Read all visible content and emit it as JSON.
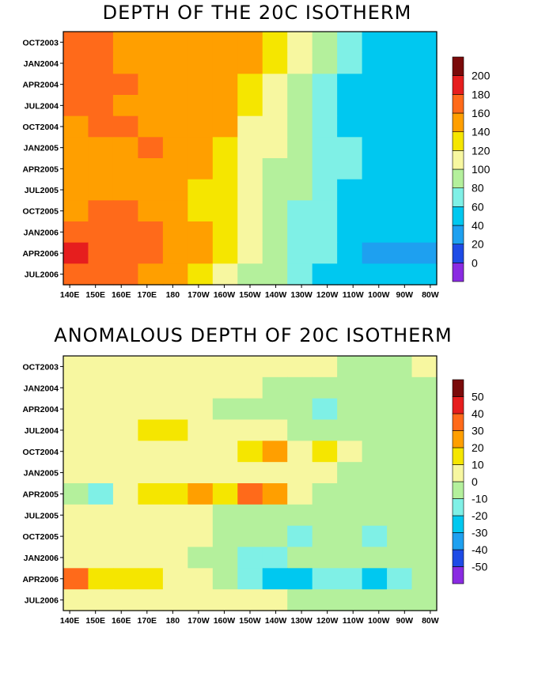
{
  "chart_data": [
    {
      "type": "heatmap",
      "title": "DEPTH OF THE 20C ISOTHERM",
      "x_tick_labels": [
        "140E",
        "150E",
        "160E",
        "170E",
        "180",
        "170W",
        "160W",
        "150W",
        "140W",
        "130W",
        "120W",
        "110W",
        "100W",
        "90W",
        "80W"
      ],
      "y_tick_labels": [
        "OCT2003",
        "JAN2004",
        "APR2004",
        "JUL2004",
        "OCT2004",
        "JAN2005",
        "APR2005",
        "JUL2005",
        "OCT2005",
        "JAN2006",
        "APR2006",
        "JUL2006"
      ],
      "colorbar": {
        "levels": [
          0,
          20,
          40,
          60,
          80,
          100,
          120,
          140,
          160,
          180,
          200
        ],
        "colors": [
          "#8a2be2",
          "#1e4be6",
          "#1ea0f0",
          "#00c8f0",
          "#7ff0e6",
          "#b4f09c",
          "#f7f7a0",
          "#f5e600",
          "#ff9f00",
          "#ff6a1a",
          "#e61e1e",
          "#7a0a0a"
        ]
      },
      "values": [
        [
          160,
          160,
          150,
          150,
          150,
          150,
          150,
          140,
          120,
          100,
          80,
          60,
          40,
          40,
          50
        ],
        [
          165,
          160,
          150,
          150,
          150,
          150,
          150,
          140,
          120,
          100,
          80,
          60,
          40,
          40,
          50
        ],
        [
          170,
          165,
          160,
          150,
          150,
          150,
          140,
          130,
          115,
          95,
          75,
          55,
          40,
          40,
          50
        ],
        [
          170,
          160,
          150,
          150,
          150,
          150,
          140,
          120,
          110,
          90,
          70,
          55,
          45,
          40,
          40
        ],
        [
          155,
          160,
          165,
          150,
          150,
          150,
          140,
          115,
          105,
          85,
          70,
          55,
          50,
          45,
          45
        ],
        [
          150,
          155,
          155,
          160,
          150,
          140,
          130,
          115,
          100,
          85,
          70,
          60,
          55,
          50,
          45
        ],
        [
          150,
          150,
          150,
          150,
          150,
          140,
          125,
          110,
          95,
          80,
          70,
          60,
          55,
          50,
          40
        ],
        [
          150,
          150,
          150,
          150,
          140,
          130,
          120,
          105,
          95,
          80,
          65,
          55,
          50,
          45,
          40
        ],
        [
          155,
          160,
          160,
          150,
          150,
          130,
          120,
          100,
          85,
          75,
          65,
          55,
          45,
          40,
          40
        ],
        [
          165,
          170,
          165,
          160,
          150,
          140,
          125,
          110,
          90,
          75,
          65,
          50,
          40,
          40,
          40
        ],
        [
          185,
          170,
          165,
          165,
          150,
          140,
          125,
          105,
          85,
          70,
          60,
          45,
          35,
          35,
          35
        ],
        [
          170,
          165,
          160,
          150,
          140,
          130,
          115,
          95,
          80,
          65,
          55,
          45,
          40,
          40,
          40
        ]
      ]
    },
    {
      "type": "heatmap",
      "title": "ANOMALOUS DEPTH OF 20C ISOTHERM",
      "x_tick_labels": [
        "140E",
        "150E",
        "160E",
        "170E",
        "180",
        "170W",
        "160W",
        "150W",
        "140W",
        "130W",
        "120W",
        "110W",
        "100W",
        "90W",
        "80W"
      ],
      "y_tick_labels": [
        "OCT2003",
        "JAN2004",
        "APR2004",
        "JUL2004",
        "OCT2004",
        "JAN2005",
        "APR2005",
        "JUL2005",
        "OCT2005",
        "JAN2006",
        "APR2006",
        "JUL2006"
      ],
      "colorbar": {
        "levels": [
          -50,
          -40,
          -30,
          -20,
          -10,
          0,
          10,
          20,
          30,
          40,
          50
        ],
        "colors": [
          "#8a2be2",
          "#1e4be6",
          "#1ea0f0",
          "#00c8f0",
          "#7ff0e6",
          "#b4f09c",
          "#f7f7a0",
          "#f5e600",
          "#ff9f00",
          "#ff6a1a",
          "#e61e1e",
          "#7a0a0a"
        ]
      },
      "values": [
        [
          5,
          5,
          5,
          5,
          5,
          5,
          5,
          5,
          5,
          5,
          5,
          -5,
          -5,
          -5,
          5
        ],
        [
          5,
          5,
          5,
          5,
          5,
          5,
          5,
          5,
          -5,
          -5,
          -5,
          -5,
          -5,
          -5,
          -5
        ],
        [
          5,
          5,
          5,
          5,
          5,
          5,
          -5,
          -5,
          -5,
          -5,
          -15,
          -5,
          -5,
          -5,
          -5
        ],
        [
          5,
          5,
          5,
          15,
          15,
          5,
          5,
          5,
          5,
          -5,
          -5,
          -5,
          -5,
          -5,
          -5
        ],
        [
          5,
          5,
          5,
          5,
          5,
          5,
          5,
          15,
          25,
          5,
          15,
          5,
          -5,
          -5,
          -5
        ],
        [
          5,
          5,
          5,
          5,
          5,
          5,
          5,
          5,
          5,
          5,
          5,
          -5,
          -5,
          -5,
          -5
        ],
        [
          -5,
          -15,
          5,
          15,
          15,
          25,
          15,
          35,
          25,
          5,
          -5,
          -5,
          -5,
          -5,
          -5
        ],
        [
          5,
          5,
          5,
          5,
          5,
          5,
          -5,
          -5,
          -5,
          -5,
          -5,
          -5,
          -5,
          -5,
          -5
        ],
        [
          5,
          5,
          5,
          5,
          5,
          5,
          -5,
          -5,
          -5,
          -15,
          -5,
          -5,
          -15,
          -5,
          -5
        ],
        [
          5,
          5,
          5,
          5,
          5,
          -5,
          -5,
          -15,
          -15,
          -5,
          -5,
          -5,
          -5,
          -5,
          -5
        ],
        [
          35,
          15,
          15,
          15,
          5,
          5,
          -5,
          -15,
          -25,
          -25,
          -15,
          -15,
          -25,
          -15,
          -5
        ],
        [
          5,
          5,
          5,
          5,
          5,
          5,
          5,
          5,
          5,
          -5,
          -5,
          -5,
          -5,
          -5,
          -5
        ]
      ]
    }
  ]
}
